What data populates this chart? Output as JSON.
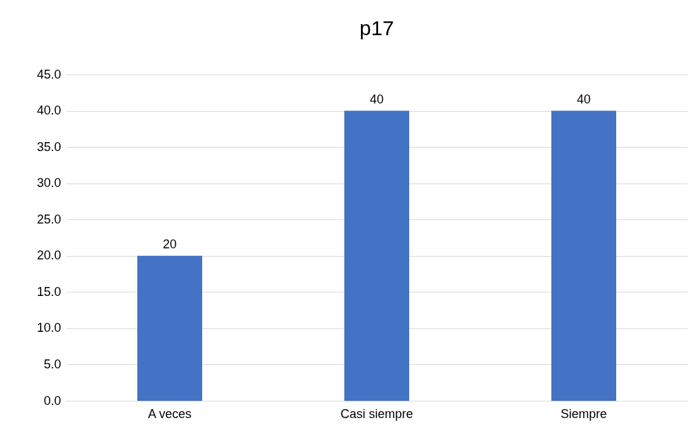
{
  "chart_data": {
    "type": "bar",
    "title": "p17",
    "categories": [
      "A veces",
      "Casi siempre",
      "Siempre"
    ],
    "values": [
      20,
      40,
      40
    ],
    "color": "#4472c4",
    "ylim": [
      0,
      45
    ],
    "yticks": [
      {
        "value": 0,
        "label": "0.0"
      },
      {
        "value": 5,
        "label": "5.0"
      },
      {
        "value": 10,
        "label": "10.0"
      },
      {
        "value": 15,
        "label": "15.0"
      },
      {
        "value": 20,
        "label": "20.0"
      },
      {
        "value": 25,
        "label": "25.0"
      },
      {
        "value": 30,
        "label": "30.0"
      },
      {
        "value": 35,
        "label": "35.0"
      },
      {
        "value": 40,
        "label": "40.0"
      },
      {
        "value": 45,
        "label": "45.0"
      }
    ],
    "grid": true,
    "data_labels": true
  }
}
